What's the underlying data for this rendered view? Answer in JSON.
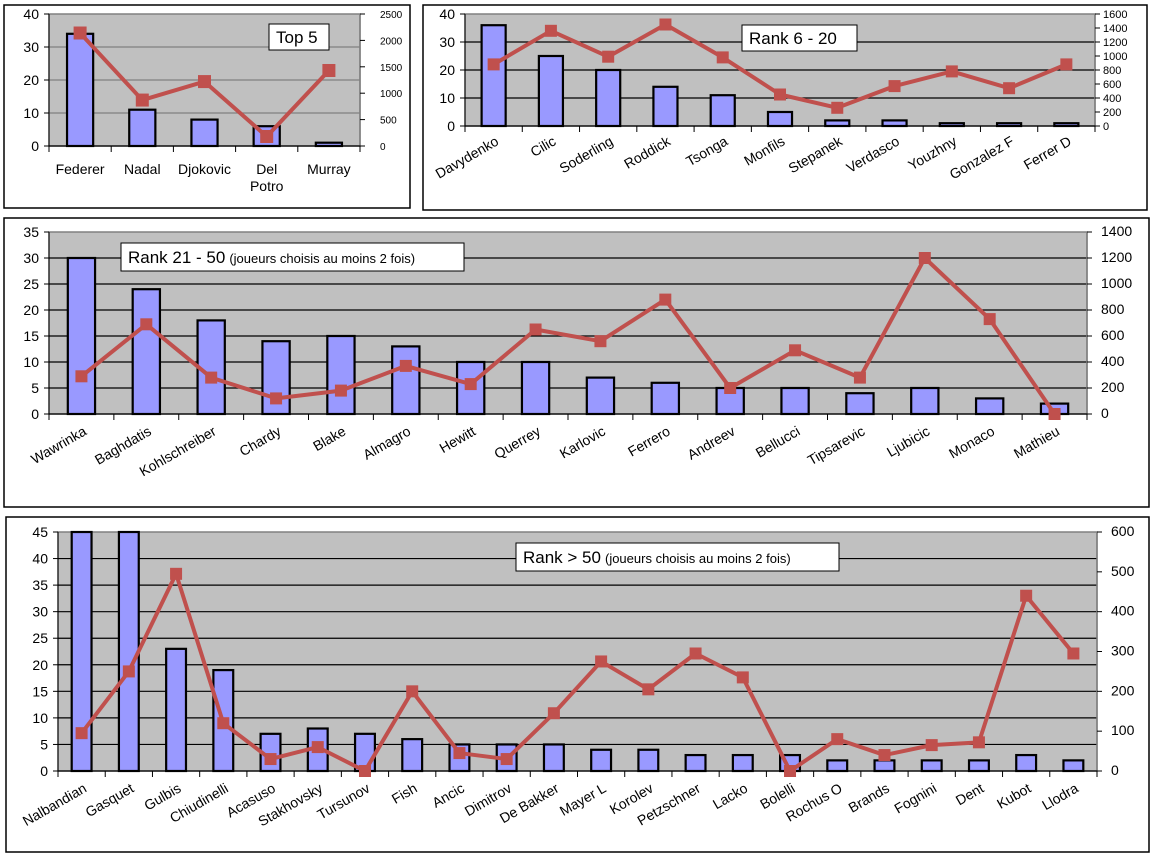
{
  "colors": {
    "plot_bg": "#c0c0c0",
    "bar_fill": "#9999ff",
    "bar_stroke": "#000000",
    "line": "#c0504d",
    "grid_dark": "#000000",
    "grid_light": "#808080"
  },
  "chart_data": [
    {
      "type": "bar",
      "title": "Top 5",
      "subtitle": "",
      "categories": [
        "Federer",
        "Nadal",
        "Djokovic",
        "Del Potro",
        "Murray"
      ],
      "series": [
        {
          "name": "bars",
          "axis": "left",
          "kind": "bar",
          "values": [
            34,
            11,
            8,
            6,
            1
          ]
        },
        {
          "name": "line",
          "axis": "right",
          "kind": "line",
          "values": [
            2140,
            870,
            1220,
            180,
            1430
          ]
        }
      ],
      "ylim": [
        0,
        40
      ],
      "yticks": [
        0,
        10,
        20,
        30,
        40
      ],
      "y2lim": [
        0,
        2500
      ],
      "y2ticks": [
        0,
        500,
        1000,
        1500,
        2000,
        2500
      ],
      "xlabel": "",
      "ylabel": "",
      "y2label": "",
      "grid": true,
      "legend": "none"
    },
    {
      "type": "bar",
      "title": "Rank 6 - 20",
      "subtitle": "",
      "categories": [
        "Davydenko",
        "Cilic",
        "Soderling",
        "Roddick",
        "Tsonga",
        "Monfils",
        "Stepanek",
        "Verdasco",
        "Youzhny",
        "Gonzalez F",
        "Ferrer D"
      ],
      "series": [
        {
          "name": "bars",
          "axis": "left",
          "kind": "bar",
          "values": [
            36,
            25,
            20,
            14,
            11,
            5,
            2,
            2,
            1,
            1,
            1
          ]
        },
        {
          "name": "line",
          "axis": "right",
          "kind": "line",
          "values": [
            880,
            1360,
            990,
            1450,
            980,
            450,
            260,
            570,
            780,
            540,
            880
          ]
        }
      ],
      "ylim": [
        0,
        40
      ],
      "yticks": [
        0,
        10,
        20,
        30,
        40
      ],
      "y2lim": [
        0,
        1600
      ],
      "y2ticks": [
        0,
        200,
        400,
        600,
        800,
        1000,
        1200,
        1400,
        1600
      ],
      "xlabel": "",
      "ylabel": "",
      "y2label": "",
      "grid": true,
      "legend": "none"
    },
    {
      "type": "bar",
      "title": "Rank 21 - 50",
      "subtitle": "(joueurs choisis au moins 2 fois)",
      "categories": [
        "Wawrinka",
        "Baghdatis",
        "Kohlschreiber",
        "Chardy",
        "Blake",
        "Almagro",
        "Hewitt",
        "Querrey",
        "Karlovic",
        "Ferrero",
        "Andreev",
        "Bellucci",
        "Tipsarevic",
        "Ljubicic",
        "Monaco",
        "Mathieu"
      ],
      "series": [
        {
          "name": "bars",
          "axis": "left",
          "kind": "bar",
          "values": [
            30,
            24,
            18,
            14,
            15,
            13,
            10,
            10,
            7,
            6,
            5,
            5,
            4,
            5,
            3,
            2
          ]
        },
        {
          "name": "line",
          "axis": "right",
          "kind": "line",
          "values": [
            290,
            690,
            280,
            120,
            180,
            370,
            230,
            650,
            560,
            880,
            200,
            490,
            280,
            1200,
            730,
            0
          ]
        }
      ],
      "ylim": [
        0,
        35
      ],
      "yticks": [
        0,
        5,
        10,
        15,
        20,
        25,
        30,
        35
      ],
      "y2lim": [
        0,
        1400
      ],
      "y2ticks": [
        0,
        200,
        400,
        600,
        800,
        1000,
        1200,
        1400
      ],
      "xlabel": "",
      "ylabel": "",
      "y2label": "",
      "grid": true,
      "legend": "none"
    },
    {
      "type": "bar",
      "title": "Rank > 50",
      "subtitle": "(joueurs choisis au moins 2 fois)",
      "categories": [
        "Nalbandian",
        "Gasquet",
        "Gulbis",
        "Chiudinelli",
        "Acasuso",
        "Stakhovsky",
        "Tursunov",
        "Fish",
        "Ancic",
        "Dimitrov",
        "De Bakker",
        "Mayer L",
        "Korolev",
        "Petzschner",
        "Lacko",
        "Bolelli",
        "Rochus O",
        "Brands",
        "Fognini",
        "Dent",
        "Kubot",
        "Llodra"
      ],
      "series": [
        {
          "name": "bars",
          "axis": "left",
          "kind": "bar",
          "values": [
            45,
            45,
            23,
            19,
            7,
            8,
            7,
            6,
            5,
            5,
            5,
            4,
            4,
            3,
            3,
            3,
            2,
            2,
            2,
            2,
            3,
            2
          ]
        },
        {
          "name": "line",
          "axis": "right",
          "kind": "line",
          "values": [
            95,
            250,
            495,
            120,
            30,
            60,
            0,
            200,
            45,
            30,
            145,
            275,
            205,
            295,
            235,
            0,
            80,
            40,
            65,
            72,
            440,
            295
          ]
        }
      ],
      "ylim": [
        0,
        45
      ],
      "yticks": [
        0,
        5,
        10,
        15,
        20,
        25,
        30,
        35,
        40,
        45
      ],
      "y2lim": [
        0,
        600
      ],
      "y2ticks": [
        0,
        100,
        200,
        300,
        400,
        500,
        600
      ],
      "xlabel": "",
      "ylabel": "",
      "y2label": "",
      "grid": true,
      "legend": "none"
    }
  ]
}
